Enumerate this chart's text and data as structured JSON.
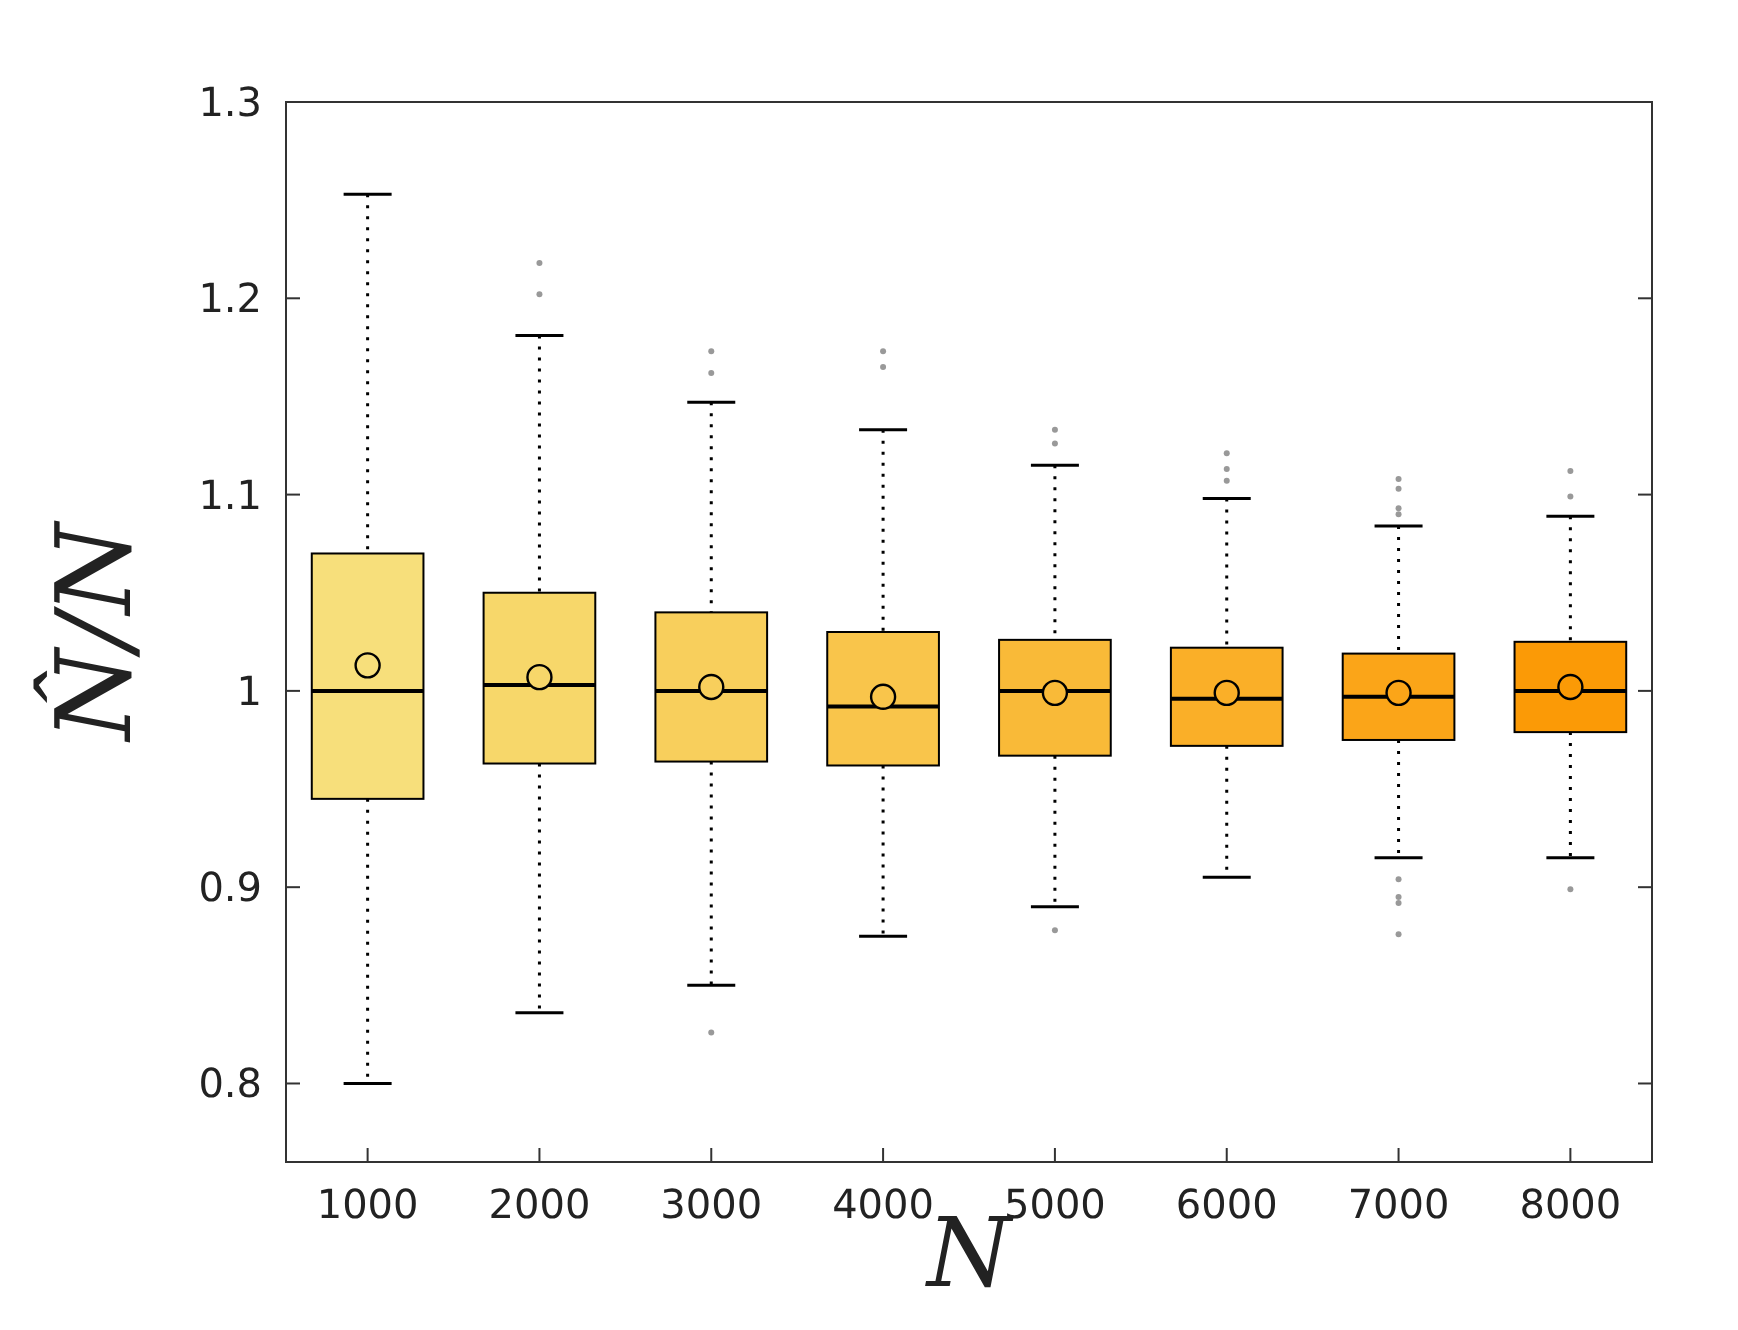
{
  "chart_data": {
    "type": "box",
    "xlabel": "N",
    "ylabel": "N̂/N",
    "categories": [
      "1000",
      "2000",
      "3000",
      "4000",
      "5000",
      "6000",
      "7000",
      "8000"
    ],
    "colors": [
      "#f7df7b",
      "#f7d76a",
      "#f8cf5c",
      "#f9c54b",
      "#f9ba38",
      "#faaf28",
      "#fba518",
      "#fb9a06"
    ],
    "boxes": [
      {
        "low": 0.8,
        "q1": 0.945,
        "median": 1.0,
        "q3": 1.07,
        "high": 1.253,
        "mean": 1.013
      },
      {
        "low": 0.836,
        "q1": 0.963,
        "median": 1.003,
        "q3": 1.05,
        "high": 1.181,
        "mean": 1.007,
        "outliers": [
          1.218,
          1.202
        ]
      },
      {
        "low": 0.85,
        "q1": 0.964,
        "median": 1.0,
        "q3": 1.04,
        "high": 1.147,
        "mean": 1.002,
        "outliers": [
          1.173,
          1.162,
          0.826
        ]
      },
      {
        "low": 0.875,
        "q1": 0.962,
        "median": 0.992,
        "q3": 1.03,
        "high": 1.133,
        "mean": 0.997,
        "outliers": [
          1.173,
          1.165
        ]
      },
      {
        "low": 0.89,
        "q1": 0.967,
        "median": 1.0,
        "q3": 1.026,
        "high": 1.115,
        "mean": 0.999,
        "outliers": [
          1.133,
          1.126,
          0.878
        ]
      },
      {
        "low": 0.905,
        "q1": 0.972,
        "median": 0.996,
        "q3": 1.022,
        "high": 1.098,
        "mean": 0.999,
        "outliers": [
          1.121,
          1.113,
          1.107
        ]
      },
      {
        "low": 0.915,
        "q1": 0.975,
        "median": 0.997,
        "q3": 1.019,
        "high": 1.084,
        "mean": 0.999,
        "outliers": [
          1.108,
          1.103,
          1.093,
          1.09,
          0.904,
          0.895,
          0.892,
          0.876
        ]
      },
      {
        "low": 0.915,
        "q1": 0.979,
        "median": 1.0,
        "q3": 1.025,
        "high": 1.089,
        "mean": 1.002,
        "outliers": [
          1.112,
          1.099,
          0.899
        ]
      }
    ],
    "ylim": [
      0.76,
      1.3
    ],
    "yticks": [
      0.8,
      0.9,
      1,
      1.1,
      1.2,
      1.3
    ],
    "grid": false
  }
}
